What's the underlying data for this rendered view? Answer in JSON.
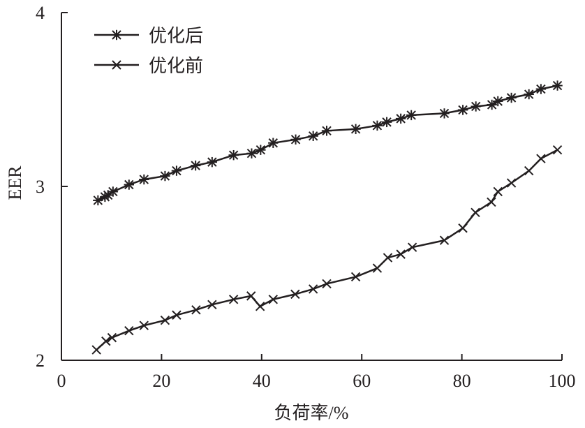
{
  "chart_data": {
    "type": "line",
    "xlabel": "负荷率/%",
    "ylabel": "EER",
    "xlim": [
      0,
      100
    ],
    "ylim": [
      2,
      4
    ],
    "xticks": [
      0,
      20,
      40,
      60,
      80,
      100
    ],
    "yticks": [
      2,
      3,
      4
    ],
    "grid": false,
    "legend_position": "top-left",
    "series": [
      {
        "name": "优化后",
        "marker": "asterisk",
        "points": [
          [
            7.3,
            2.92
          ],
          [
            8.7,
            2.94
          ],
          [
            9.3,
            2.95
          ],
          [
            10.3,
            2.97
          ],
          [
            13.5,
            3.01
          ],
          [
            16.5,
            3.04
          ],
          [
            20.7,
            3.06
          ],
          [
            23.0,
            3.09
          ],
          [
            26.8,
            3.12
          ],
          [
            30.1,
            3.14
          ],
          [
            34.4,
            3.18
          ],
          [
            38.0,
            3.19
          ],
          [
            39.8,
            3.21
          ],
          [
            42.3,
            3.25
          ],
          [
            46.8,
            3.27
          ],
          [
            50.3,
            3.29
          ],
          [
            53.0,
            3.32
          ],
          [
            58.8,
            3.33
          ],
          [
            63.1,
            3.35
          ],
          [
            65.0,
            3.37
          ],
          [
            67.8,
            3.39
          ],
          [
            69.9,
            3.41
          ],
          [
            76.5,
            3.42
          ],
          [
            80.2,
            3.44
          ],
          [
            82.8,
            3.46
          ],
          [
            86.0,
            3.47
          ],
          [
            87.2,
            3.49
          ],
          [
            89.9,
            3.51
          ],
          [
            93.4,
            3.53
          ],
          [
            95.8,
            3.56
          ],
          [
            99.1,
            3.58
          ]
        ]
      },
      {
        "name": "优化前",
        "marker": "x",
        "points": [
          [
            7.0,
            2.06
          ],
          [
            8.9,
            2.11
          ],
          [
            10.1,
            2.13
          ],
          [
            13.5,
            2.17
          ],
          [
            16.5,
            2.2
          ],
          [
            20.7,
            2.23
          ],
          [
            23.0,
            2.26
          ],
          [
            26.9,
            2.29
          ],
          [
            30.1,
            2.32
          ],
          [
            34.4,
            2.35
          ],
          [
            37.9,
            2.37
          ],
          [
            39.7,
            2.31
          ],
          [
            42.3,
            2.35
          ],
          [
            46.7,
            2.38
          ],
          [
            50.3,
            2.41
          ],
          [
            53.0,
            2.44
          ],
          [
            58.8,
            2.48
          ],
          [
            63.1,
            2.53
          ],
          [
            65.2,
            2.59
          ],
          [
            67.8,
            2.61
          ],
          [
            70.1,
            2.65
          ],
          [
            76.5,
            2.69
          ],
          [
            80.2,
            2.76
          ],
          [
            82.7,
            2.85
          ],
          [
            85.9,
            2.91
          ],
          [
            87.2,
            2.97
          ],
          [
            89.9,
            3.02
          ],
          [
            93.4,
            3.09
          ],
          [
            95.8,
            3.16
          ],
          [
            99.1,
            3.21
          ]
        ]
      }
    ]
  }
}
